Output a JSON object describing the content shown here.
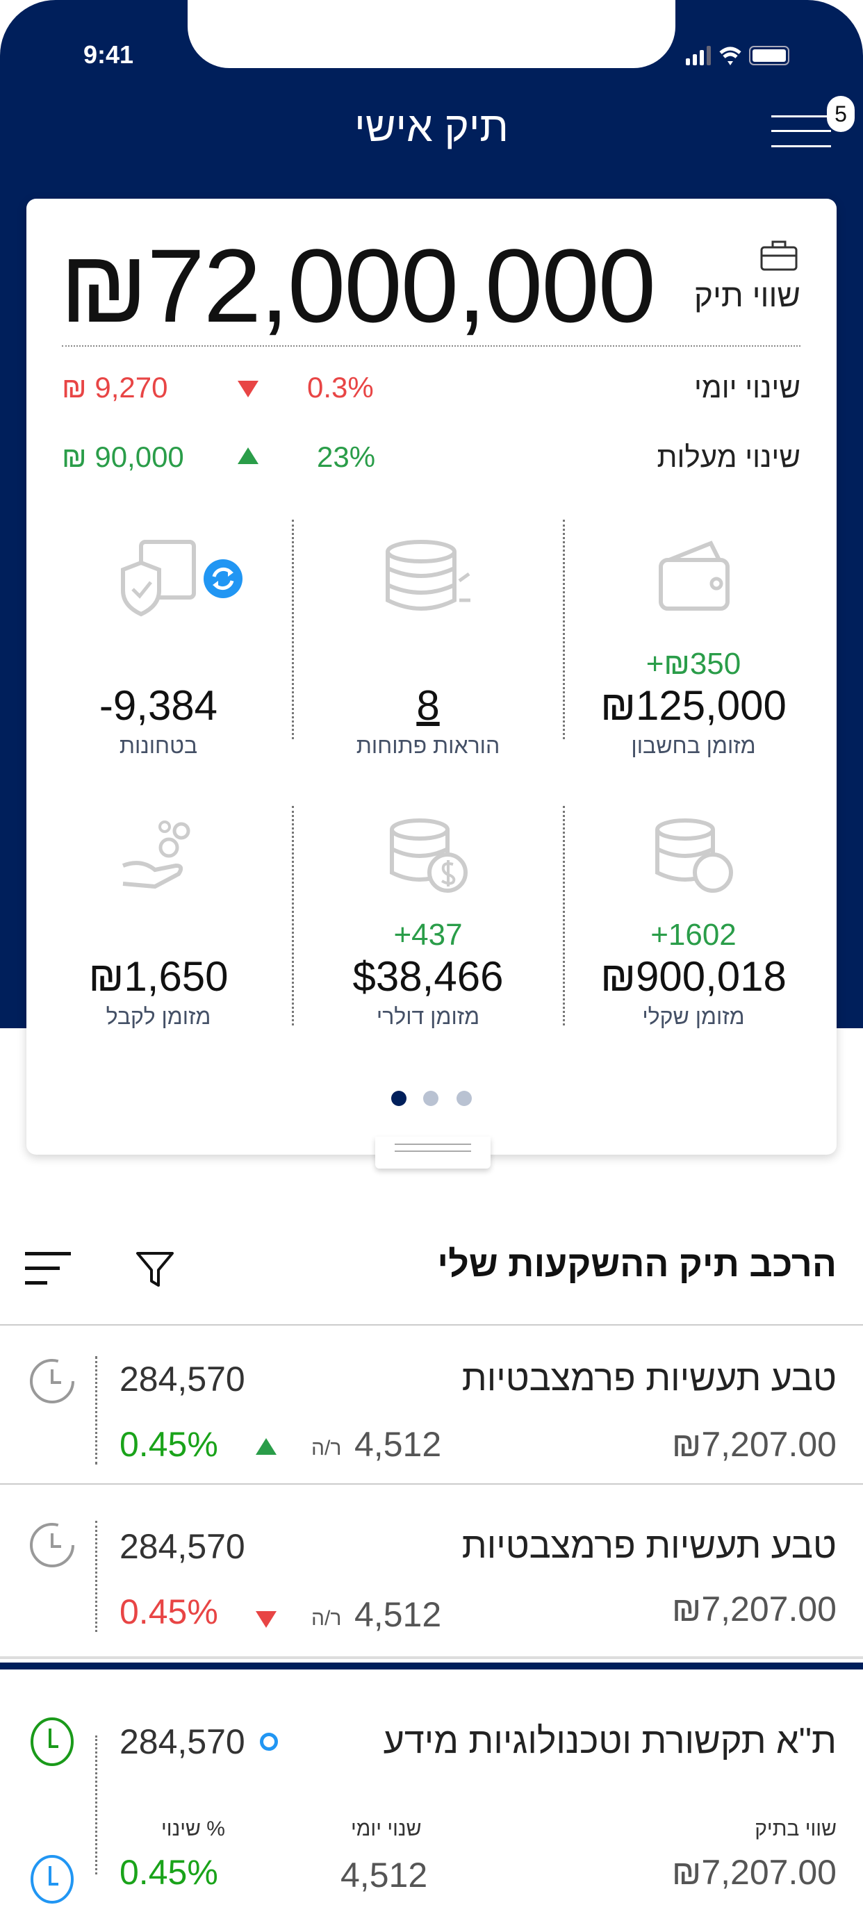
{
  "status_bar": {
    "time": "9:41"
  },
  "header": {
    "title": "תיק אישי",
    "menu_badge": "5"
  },
  "summary": {
    "label": "שווי תיק",
    "total": "₪72,000,000",
    "daily": {
      "label": "שינוי יומי",
      "percent": "0.3%",
      "amount": "₪ 9,270",
      "direction": "down"
    },
    "since_start": {
      "label": "שינוי מעלות",
      "percent": "23%",
      "amount": "₪ 90,000",
      "direction": "up"
    }
  },
  "tiles": [
    {
      "icon": "wallet-icon",
      "change": "+₪350",
      "value": "₪125,000",
      "label": "מזומן בחשבון"
    },
    {
      "icon": "coins-transfer-icon",
      "change": "",
      "value": "8",
      "label": "הוראות פתוחות"
    },
    {
      "icon": "shield-safe-icon",
      "change": "",
      "value": "-9,384",
      "label": "בטחונות",
      "badge_icon": "refresh-icon"
    },
    {
      "icon": "shekel-coins-icon",
      "change": "+1602",
      "value": "₪900,018",
      "label": "מזומן שקלי"
    },
    {
      "icon": "dollar-coins-icon",
      "change": "+437",
      "value": "$38,466",
      "label": "מזומן דולרי"
    },
    {
      "icon": "hand-coins-icon",
      "change": "",
      "value": "₪1,650",
      "label": "מזומן לקבל"
    }
  ],
  "pager": {
    "pages": 3,
    "active": 0
  },
  "colors": {
    "navy": "#001f5b",
    "green": "#2a9d49",
    "red": "#e84545",
    "blue": "#2196f3"
  },
  "section": {
    "title": "הרכב תיק ההשקעות שלי"
  },
  "holdings": [
    {
      "name": "טבע תעשיות פרמצבטיות",
      "quantity": "284,570",
      "value": "₪7,207.00",
      "daily": "4,512",
      "daily_unit": "ר/ה",
      "percent": "0.45%",
      "direction": "up"
    },
    {
      "name": "טבע תעשיות פרמצבטיות",
      "quantity": "284,570",
      "value": "₪7,207.00",
      "daily": "4,512",
      "daily_unit": "ר/ה",
      "percent": "0.45%",
      "direction": "down"
    },
    {
      "name": "ת\"א תקשורת וטכנולוגיות מידע",
      "quantity": "284,570",
      "col_value": "שווי בתיק",
      "col_daily": "שנוי יומי",
      "col_percent": "% שינוי",
      "value": "₪7,207.00",
      "daily": "4,512",
      "percent": "0.45%"
    }
  ]
}
